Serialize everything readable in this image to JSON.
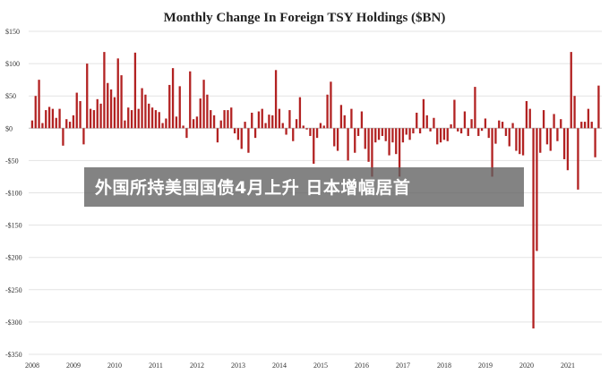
{
  "chart_data": {
    "type": "bar",
    "title": "Monthly Change In Foreign TSY Holdings  ($BN)",
    "xlabel": "",
    "ylabel": "",
    "ylim": [
      -350,
      150
    ],
    "y_ticks": [
      150,
      100,
      50,
      0,
      -50,
      -100,
      -150,
      -200,
      -250,
      -300,
      -350
    ],
    "y_tick_labels": [
      "$150",
      "$100",
      "$50",
      "$0",
      "-$50",
      "-$100",
      "-$150",
      "-$200",
      "-$250",
      "-$300",
      "-$350"
    ],
    "x_tick_labels": [
      "2008",
      "2009",
      "2010",
      "2011",
      "2012",
      "2013",
      "2014",
      "2015",
      "2016",
      "2017",
      "2018",
      "2019",
      "2020",
      "2021"
    ],
    "start_year": 2008,
    "bar_color": "#b22222",
    "grid": true,
    "values": [
      12,
      50,
      75,
      8,
      28,
      33,
      30,
      16,
      30,
      -27,
      14,
      10,
      20,
      55,
      42,
      -25,
      100,
      30,
      28,
      45,
      38,
      118,
      70,
      60,
      48,
      108,
      82,
      12,
      32,
      28,
      117,
      30,
      62,
      52,
      38,
      32,
      28,
      25,
      8,
      15,
      67,
      93,
      18,
      65,
      4,
      -15,
      88,
      14,
      18,
      46,
      75,
      52,
      28,
      20,
      -22,
      12,
      28,
      28,
      32,
      -8,
      -18,
      -32,
      10,
      -38,
      24,
      -15,
      26,
      30,
      8,
      21,
      20,
      90,
      30,
      8,
      -10,
      28,
      -20,
      14,
      48,
      4,
      -2,
      -12,
      -55,
      -15,
      8,
      4,
      52,
      72,
      -28,
      -35,
      36,
      20,
      -50,
      30,
      -38,
      -12,
      26,
      -32,
      -52,
      -75,
      -22,
      -18,
      -12,
      -20,
      -42,
      -22,
      -40,
      -75,
      -22,
      -10,
      -18,
      -8,
      24,
      -8,
      45,
      20,
      -5,
      16,
      -25,
      -22,
      -18,
      -20,
      6,
      44,
      -5,
      -8,
      26,
      -12,
      14,
      64,
      -12,
      -4,
      15,
      -15,
      -75,
      -24,
      12,
      10,
      -12,
      -28,
      8,
      -35,
      -40,
      -42,
      42,
      30,
      -310,
      -190,
      -38,
      28,
      -25,
      -35,
      22,
      -20,
      14,
      -48,
      -65,
      118,
      50,
      -95,
      10,
      10,
      30,
      10,
      -45,
      66
    ]
  },
  "banner": {
    "text": "外国所持美国国债4月上升 日本增幅居首"
  }
}
